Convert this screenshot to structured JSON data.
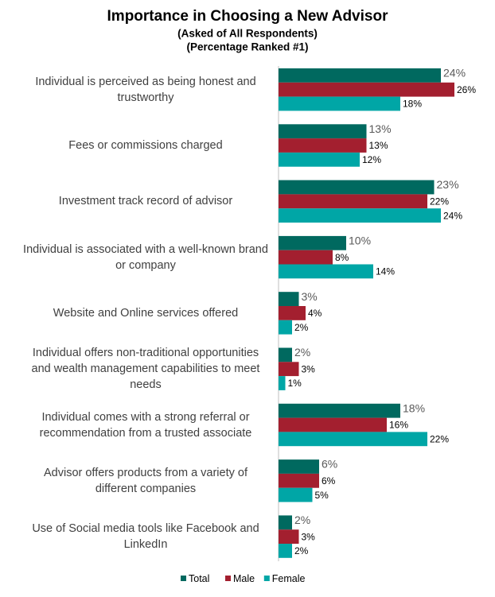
{
  "chart_data": {
    "type": "hbar",
    "title": "Importance in Choosing a New Advisor",
    "subtitle": [
      "(Asked of All Respondents)",
      "(Percentage Ranked #1)"
    ],
    "categories": [
      "Individual is perceived as being honest and trustworthy",
      "Fees or commissions charged",
      "Investment track record of advisor",
      "Individual is associated with a well-known brand or company",
      "Website and Online services offered",
      "Individual offers non-traditional opportunities and wealth management capabilities to meet needs",
      "Individual comes with a strong referral or recommendation from a trusted associate",
      "Advisor offers products from a variety of different companies",
      "Use of Social media tools like Facebook and LinkedIn"
    ],
    "series": [
      {
        "name": "Total",
        "color": "#00695f",
        "values": [
          24,
          13,
          23,
          10,
          3,
          2,
          18,
          6,
          2
        ],
        "value_labels": [
          "24%",
          "13%",
          "23%",
          "10%",
          "3%",
          "2%",
          "18%",
          "6%",
          "2%"
        ]
      },
      {
        "name": "Male",
        "color": "#a31f2f",
        "values": [
          26,
          13,
          22,
          8,
          4,
          3,
          16,
          6,
          3
        ],
        "value_labels": [
          "26%",
          "13%",
          "22%",
          "8%",
          "4%",
          "3%",
          "16%",
          "6%",
          "3%"
        ]
      },
      {
        "name": "Female",
        "color": "#00a6a6",
        "values": [
          18,
          12,
          24,
          14,
          2,
          1,
          22,
          5,
          2
        ],
        "value_labels": [
          "18%",
          "12%",
          "24%",
          "14%",
          "2%",
          "1%",
          "22%",
          "5%",
          "2%"
        ]
      }
    ],
    "xlim": [
      0,
      32
    ],
    "legend": "bottom"
  }
}
